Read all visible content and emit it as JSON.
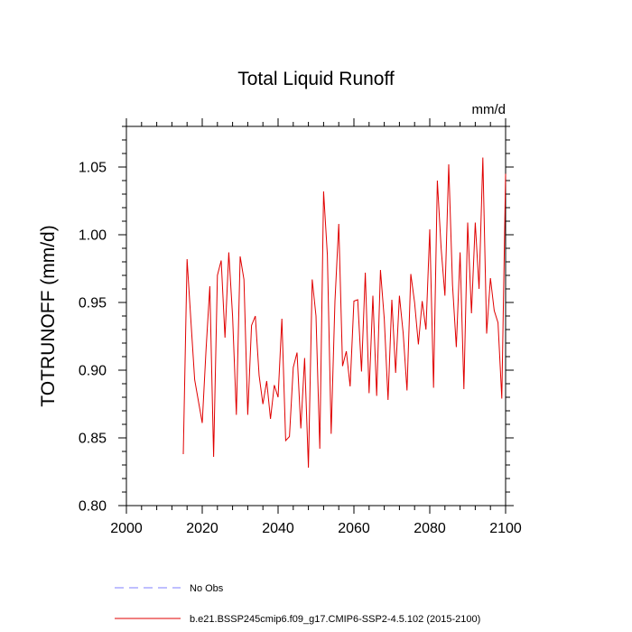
{
  "chart_data": {
    "type": "line",
    "title": "Total Liquid Runoff",
    "units_label": "mm/d",
    "xlabel": "",
    "ylabel": "TOTRUNOFF  (mm/d)",
    "xlim": [
      2000,
      2100
    ],
    "ylim": [
      0.8,
      1.08
    ],
    "x_ticks": [
      2000,
      2020,
      2040,
      2060,
      2080,
      2100
    ],
    "x_tick_labels": [
      "2000",
      "2020",
      "2040",
      "2060",
      "2080",
      "2100"
    ],
    "y_ticks": [
      0.8,
      0.85,
      0.9,
      0.95,
      1.0,
      1.05
    ],
    "y_tick_labels": [
      "0.80",
      "0.85",
      "0.90",
      "0.95",
      "1.00",
      "1.05"
    ],
    "grid": false,
    "legend": {
      "placement": "bottom",
      "entries": [
        {
          "label": "No Obs",
          "color": "#7f7fff",
          "style": "dashed"
        },
        {
          "label": "b.e21.BSSP245cmip6.f09_g17.CMIP6-SSP2-4.5.102 (2015-2100)",
          "color": "#e00000",
          "style": "solid"
        }
      ]
    },
    "series": [
      {
        "name": "b.e21.BSSP245cmip6.f09_g17.CMIP6-SSP2-4.5.102 (2015-2100)",
        "color": "#e00000",
        "x": [
          2015,
          2016,
          2017,
          2018,
          2019,
          2020,
          2021,
          2022,
          2023,
          2024,
          2025,
          2026,
          2027,
          2028,
          2029,
          2030,
          2031,
          2032,
          2033,
          2034,
          2035,
          2036,
          2037,
          2038,
          2039,
          2040,
          2041,
          2042,
          2043,
          2044,
          2045,
          2046,
          2047,
          2048,
          2049,
          2050,
          2051,
          2052,
          2053,
          2054,
          2055,
          2056,
          2057,
          2058,
          2059,
          2060,
          2061,
          2062,
          2063,
          2064,
          2065,
          2066,
          2067,
          2068,
          2069,
          2070,
          2071,
          2072,
          2073,
          2074,
          2075,
          2076,
          2077,
          2078,
          2079,
          2080,
          2081,
          2082,
          2083,
          2084,
          2085,
          2086,
          2087,
          2088,
          2089,
          2090,
          2091,
          2092,
          2093,
          2094,
          2095,
          2096,
          2097,
          2098,
          2099,
          2100
        ],
        "values": [
          0.838,
          0.982,
          0.937,
          0.893,
          0.877,
          0.861,
          0.915,
          0.962,
          0.836,
          0.97,
          0.981,
          0.924,
          0.987,
          0.94,
          0.867,
          0.984,
          0.967,
          0.867,
          0.933,
          0.94,
          0.896,
          0.875,
          0.892,
          0.864,
          0.889,
          0.88,
          0.938,
          0.848,
          0.851,
          0.902,
          0.913,
          0.857,
          0.909,
          0.828,
          0.967,
          0.94,
          0.842,
          1.032,
          0.985,
          0.853,
          0.951,
          1.008,
          0.903,
          0.914,
          0.888,
          0.951,
          0.952,
          0.899,
          0.972,
          0.883,
          0.955,
          0.881,
          0.974,
          0.938,
          0.878,
          0.952,
          0.898,
          0.955,
          0.927,
          0.885,
          0.971,
          0.95,
          0.919,
          0.951,
          0.93,
          1.004,
          0.887,
          1.04,
          0.99,
          0.955,
          1.052,
          0.963,
          0.917,
          0.987,
          0.886,
          1.009,
          0.942,
          1.009,
          0.96,
          1.057,
          0.927,
          0.968,
          0.944,
          0.935,
          0.879,
          1.045
        ]
      }
    ]
  }
}
